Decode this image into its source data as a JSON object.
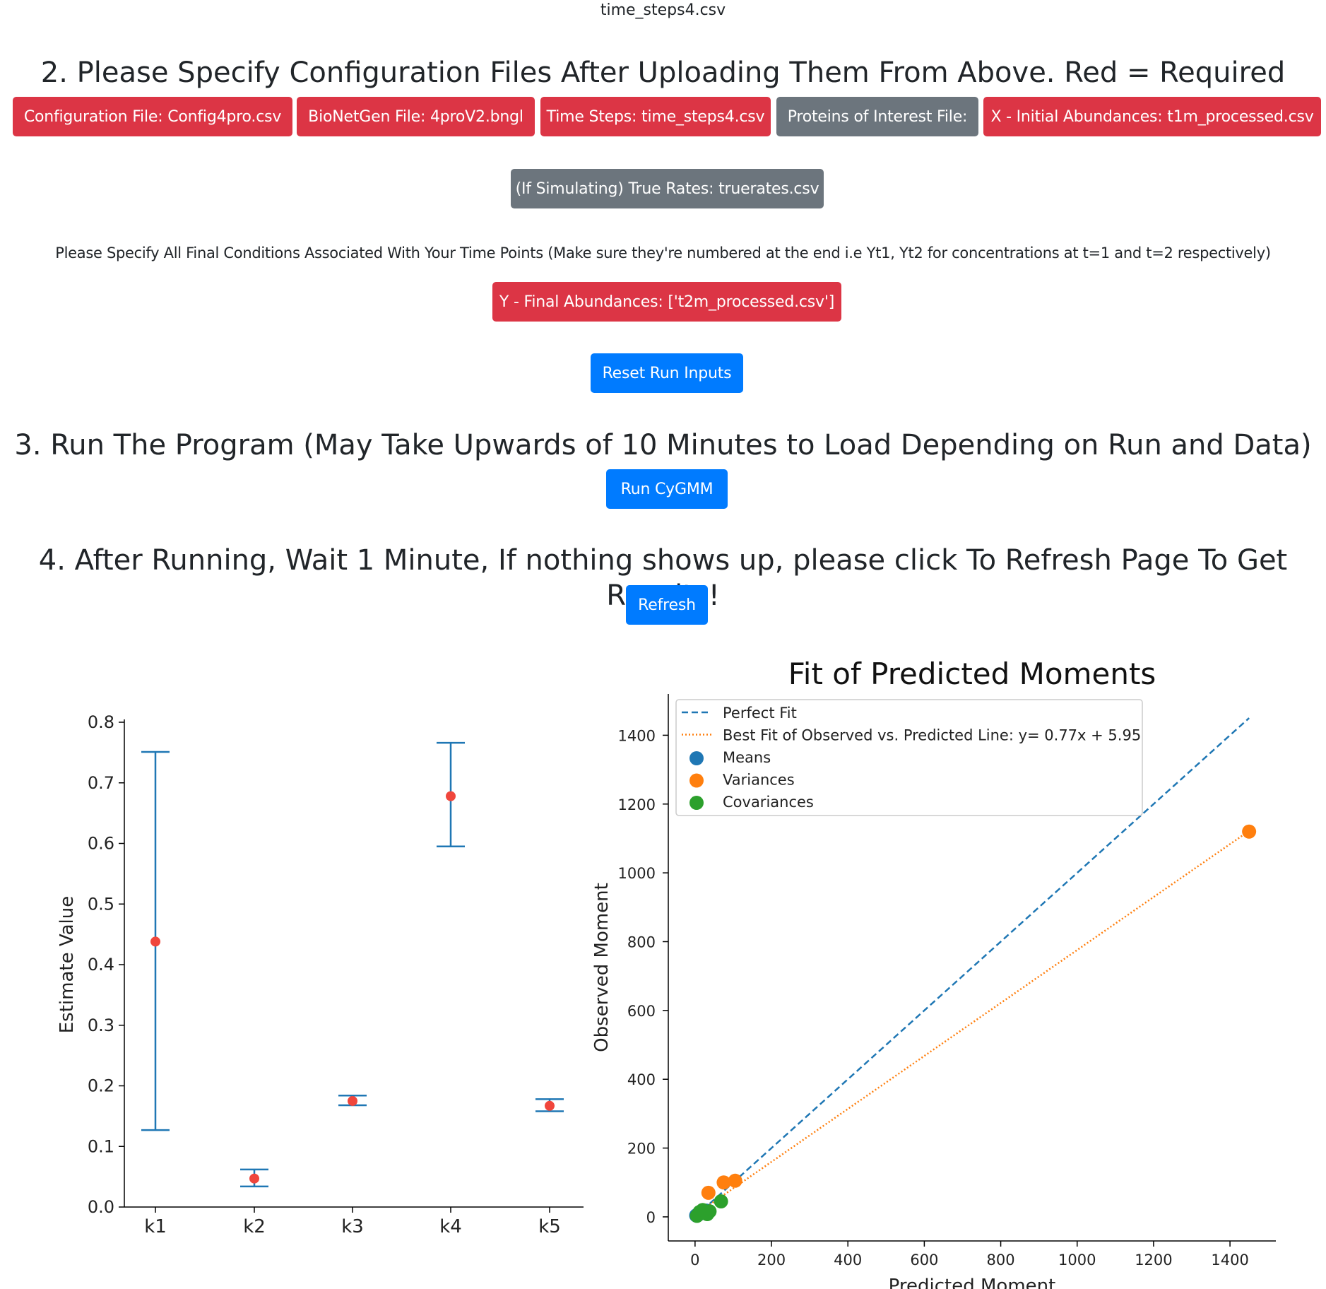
{
  "page": {
    "filename": "time_steps4.csv"
  },
  "section2": {
    "heading": "2. Please Specify Configuration Files After Uploading Them From Above. Red = Required",
    "buttons": [
      {
        "label": "Configuration File: Config4pro.csv",
        "status": "required"
      },
      {
        "label": "BioNetGen File: 4proV2.bngl",
        "status": "required"
      },
      {
        "label": "Time Steps: time_steps4.csv",
        "status": "required"
      },
      {
        "label": "Proteins of Interest File:",
        "status": "optional"
      },
      {
        "label": "X - Initial Abundances: t1m_processed.csv",
        "status": "required"
      }
    ],
    "true_rates_label": "(If Simulating) True Rates: truerates.csv",
    "final_conditions_note": "Please Specify All Final Conditions Associated With Your Time Points (Make sure they're numbered at the end i.e Yt1, Yt2 for concentrations at t=1 and t=2 respectively)",
    "final_abundances_label": "Y - Final Abundances: ['t2m_processed.csv']",
    "reset_label": "Reset Run Inputs"
  },
  "section3": {
    "heading": "3. Run The Program (May Take Upwards of 10 Minutes to Load Depending on Run and Data)",
    "run_label": "Run CyGMM"
  },
  "section4": {
    "heading": "4. After Running, Wait 1 Minute, If nothing shows up, please click To Refresh Page To Get Results!",
    "refresh_label": "Refresh"
  },
  "colors": {
    "required": "#dc3545",
    "optional": "#6c757d",
    "primary": "#007bff",
    "errorbar": "#1f77b4",
    "estimate_point": "#f0463c",
    "means": "#1f77b4",
    "variances": "#ff7f0e",
    "covariances": "#2ca02c"
  },
  "chart_data": [
    {
      "type": "scatter",
      "title": "",
      "xlabel": "",
      "ylabel": "Estimate Value",
      "categories": [
        "k1",
        "k2",
        "k3",
        "k4",
        "k5"
      ],
      "values": [
        0.438,
        0.047,
        0.175,
        0.678,
        0.167
      ],
      "error_low": [
        0.127,
        0.034,
        0.168,
        0.595,
        0.158
      ],
      "error_high": [
        0.751,
        0.062,
        0.184,
        0.766,
        0.178
      ],
      "ylim": [
        0.0,
        0.8
      ],
      "yticks": [
        "0.0",
        "0.1",
        "0.2",
        "0.3",
        "0.4",
        "0.5",
        "0.6",
        "0.7",
        "0.8"
      ]
    },
    {
      "type": "scatter",
      "title": "Fit of Predicted Moments",
      "xlabel": "Predicted Moment",
      "ylabel": "Observed Moment",
      "xlim": [
        -70,
        1520
      ],
      "ylim": [
        -70,
        1520
      ],
      "xticks": [
        "0",
        "200",
        "400",
        "600",
        "800",
        "1000",
        "1200",
        "1400"
      ],
      "yticks": [
        "0",
        "200",
        "400",
        "600",
        "800",
        "1000",
        "1200",
        "1400"
      ],
      "legend": "upper-left",
      "lines": [
        {
          "name": "Perfect Fit",
          "style": "dashed",
          "x": [
            0,
            1450
          ],
          "y": [
            0,
            1450
          ]
        },
        {
          "name": "Best Fit of Observed vs. Predicted Line: y= 0.77x + 5.95",
          "style": "dotted",
          "x": [
            0,
            1450
          ],
          "y": [
            5.95,
            1122
          ]
        }
      ],
      "series": [
        {
          "name": "Means",
          "points": [
            [
              3,
              4
            ],
            [
              8,
              6
            ],
            [
              15,
              12
            ],
            [
              30,
              18
            ]
          ]
        },
        {
          "name": "Variances",
          "points": [
            [
              35,
              70
            ],
            [
              75,
              100
            ],
            [
              105,
              105
            ],
            [
              1450,
              1120
            ]
          ]
        },
        {
          "name": "Covariances",
          "points": [
            [
              5,
              3
            ],
            [
              12,
              14
            ],
            [
              20,
              20
            ],
            [
              32,
              8
            ],
            [
              38,
              16
            ],
            [
              68,
              45
            ]
          ]
        }
      ]
    }
  ]
}
